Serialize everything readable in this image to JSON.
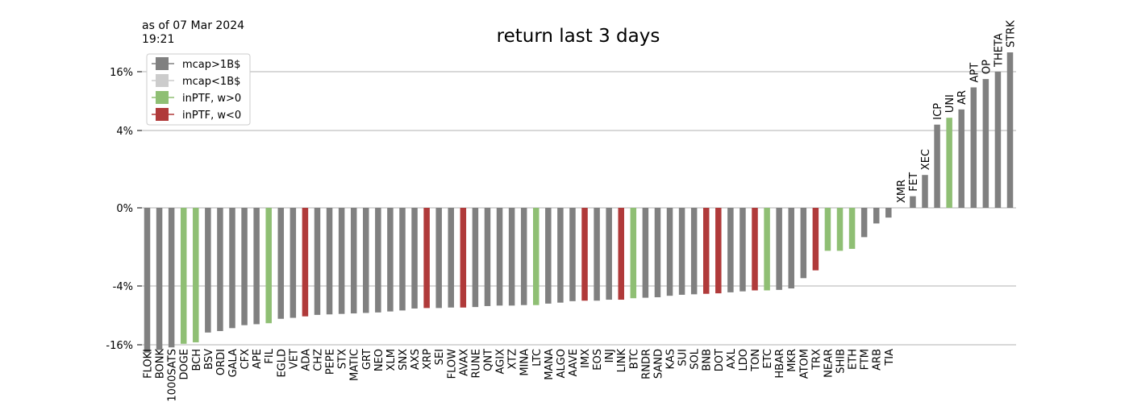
{
  "as_of": {
    "line1": "as of 07 Mar 2024",
    "line2": "19:21"
  },
  "chart_data": {
    "type": "bar",
    "title": "return last 3 days",
    "xlabel": "",
    "ylabel": "",
    "scale": "symlog-like (tick labels 0%, ±4%, ±16%)",
    "yticks": [
      {
        "label": "16%"
      },
      {
        "label": "4%"
      },
      {
        "label": "0%"
      },
      {
        "label": "-4%"
      },
      {
        "label": "-16%"
      }
    ],
    "grid": "horizontal",
    "legend_placement": "top-left",
    "legend": [
      {
        "label": "mcap>1B$",
        "color": "#808080"
      },
      {
        "label": "mcap<1B$",
        "color": "#cccccc"
      },
      {
        "label": "inPTF, w>0",
        "color": "#8fbf74"
      },
      {
        "label": "inPTF, w<0",
        "color": "#b03a3a"
      }
    ],
    "colors": {
      "mcap>1B$": "#808080",
      "mcap<1B$": "#cccccc",
      "inPTF, w>0": "#8fbf74",
      "inPTF, w<0": "#b03a3a"
    },
    "bars": [
      {
        "label": "FLOKI",
        "value": -19.0,
        "group": "mcap>1B$"
      },
      {
        "label": "BONK",
        "value": -18.0,
        "group": "mcap>1B$"
      },
      {
        "label": "1000SATS",
        "value": -17.0,
        "group": "mcap>1B$"
      },
      {
        "label": "DOGE",
        "value": -15.8,
        "group": "inPTF, w>0"
      },
      {
        "label": "BCH",
        "value": -15.5,
        "group": "inPTF, w>0"
      },
      {
        "label": "BSV",
        "value": -13.5,
        "group": "mcap>1B$"
      },
      {
        "label": "ORDI",
        "value": -13.2,
        "group": "mcap>1B$"
      },
      {
        "label": "GALA",
        "value": -12.6,
        "group": "mcap>1B$"
      },
      {
        "label": "CFX",
        "value": -12.0,
        "group": "mcap>1B$"
      },
      {
        "label": "APE",
        "value": -11.8,
        "group": "mcap>1B$"
      },
      {
        "label": "FIL",
        "value": -11.6,
        "group": "inPTF, w>0"
      },
      {
        "label": "EGLD",
        "value": -10.7,
        "group": "mcap>1B$"
      },
      {
        "label": "VET",
        "value": -10.5,
        "group": "mcap>1B$"
      },
      {
        "label": "ADA",
        "value": -10.2,
        "group": "inPTF, w<0"
      },
      {
        "label": "CHZ",
        "value": -9.9,
        "group": "mcap>1B$"
      },
      {
        "label": "PEPE",
        "value": -9.8,
        "group": "mcap>1B$"
      },
      {
        "label": "STX",
        "value": -9.7,
        "group": "mcap>1B$"
      },
      {
        "label": "MATIC",
        "value": -9.6,
        "group": "mcap>1B$"
      },
      {
        "label": "GRT",
        "value": -9.5,
        "group": "mcap>1B$"
      },
      {
        "label": "NEO",
        "value": -9.4,
        "group": "mcap>1B$"
      },
      {
        "label": "XLM",
        "value": -9.2,
        "group": "mcap>1B$"
      },
      {
        "label": "SNX",
        "value": -9.0,
        "group": "mcap>1B$"
      },
      {
        "label": "AXS",
        "value": -8.6,
        "group": "mcap>1B$"
      },
      {
        "label": "XRP",
        "value": -8.5,
        "group": "inPTF, w<0"
      },
      {
        "label": "SEI",
        "value": -8.5,
        "group": "mcap>1B$"
      },
      {
        "label": "FLOW",
        "value": -8.4,
        "group": "mcap>1B$"
      },
      {
        "label": "AVAX",
        "value": -8.4,
        "group": "inPTF, w<0"
      },
      {
        "label": "RUNE",
        "value": -8.3,
        "group": "mcap>1B$"
      },
      {
        "label": "QNT",
        "value": -8.1,
        "group": "mcap>1B$"
      },
      {
        "label": "AGIX",
        "value": -8.0,
        "group": "mcap>1B$"
      },
      {
        "label": "XTZ",
        "value": -8.0,
        "group": "mcap>1B$"
      },
      {
        "label": "MINA",
        "value": -7.9,
        "group": "mcap>1B$"
      },
      {
        "label": "LTC",
        "value": -7.9,
        "group": "inPTF, w>0"
      },
      {
        "label": "MANA",
        "value": -7.6,
        "group": "mcap>1B$"
      },
      {
        "label": "ALGO",
        "value": -7.4,
        "group": "mcap>1B$"
      },
      {
        "label": "AAVE",
        "value": -7.1,
        "group": "mcap>1B$"
      },
      {
        "label": "IMX",
        "value": -7.0,
        "group": "inPTF, w<0"
      },
      {
        "label": "EOS",
        "value": -7.0,
        "group": "mcap>1B$"
      },
      {
        "label": "INJ",
        "value": -6.8,
        "group": "mcap>1B$"
      },
      {
        "label": "LINK",
        "value": -6.8,
        "group": "inPTF, w<0"
      },
      {
        "label": "BTC",
        "value": -6.5,
        "group": "inPTF, w>0"
      },
      {
        "label": "RNDR",
        "value": -6.4,
        "group": "mcap>1B$"
      },
      {
        "label": "SAND",
        "value": -6.3,
        "group": "mcap>1B$"
      },
      {
        "label": "KAS",
        "value": -6.0,
        "group": "mcap>1B$"
      },
      {
        "label": "SUI",
        "value": -5.8,
        "group": "mcap>1B$"
      },
      {
        "label": "SOL",
        "value": -5.7,
        "group": "mcap>1B$"
      },
      {
        "label": "BNB",
        "value": -5.6,
        "group": "inPTF, w<0"
      },
      {
        "label": "DOT",
        "value": -5.5,
        "group": "inPTF, w<0"
      },
      {
        "label": "AXL",
        "value": -5.3,
        "group": "mcap>1B$"
      },
      {
        "label": "LDO",
        "value": -5.1,
        "group": "mcap>1B$"
      },
      {
        "label": "TON",
        "value": -4.9,
        "group": "inPTF, w<0"
      },
      {
        "label": "ETC",
        "value": -4.9,
        "group": "inPTF, w>0"
      },
      {
        "label": "HBAR",
        "value": -4.8,
        "group": "mcap>1B$"
      },
      {
        "label": "MKR",
        "value": -4.5,
        "group": "mcap>1B$"
      },
      {
        "label": "ATOM",
        "value": -3.6,
        "group": "mcap>1B$"
      },
      {
        "label": "TRX",
        "value": -3.2,
        "group": "inPTF, w<0"
      },
      {
        "label": "NEAR",
        "value": -2.2,
        "group": "inPTF, w>0"
      },
      {
        "label": "SHIB",
        "value": -2.2,
        "group": "inPTF, w>0"
      },
      {
        "label": "ETH",
        "value": -2.1,
        "group": "inPTF, w>0"
      },
      {
        "label": "FTM",
        "value": -1.5,
        "group": "mcap>1B$"
      },
      {
        "label": "ARB",
        "value": -0.8,
        "group": "mcap>1B$"
      },
      {
        "label": "TIA",
        "value": -0.5,
        "group": "mcap>1B$"
      },
      {
        "label": "XMR",
        "value": 0.0,
        "group": "mcap>1B$"
      },
      {
        "label": "FET",
        "value": 0.6,
        "group": "mcap>1B$"
      },
      {
        "label": "XEC",
        "value": 1.7,
        "group": "mcap>1B$"
      },
      {
        "label": "ICP",
        "value": 5.2,
        "group": "mcap>1B$"
      },
      {
        "label": "UNI",
        "value": 6.6,
        "group": "inPTF, w>0"
      },
      {
        "label": "AR",
        "value": 8.3,
        "group": "mcap>1B$"
      },
      {
        "label": "APT",
        "value": 12.8,
        "group": "mcap>1B$"
      },
      {
        "label": "OP",
        "value": 14.5,
        "group": "mcap>1B$"
      },
      {
        "label": "THETA",
        "value": 16.0,
        "group": "mcap>1B$"
      },
      {
        "label": "STRK",
        "value": 20.0,
        "group": "mcap>1B$"
      }
    ]
  }
}
